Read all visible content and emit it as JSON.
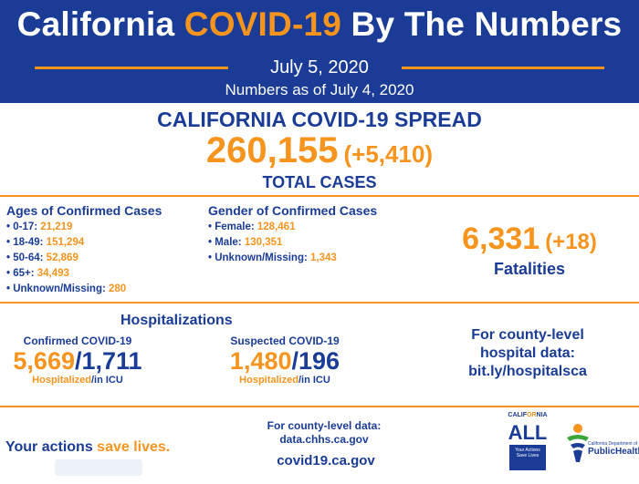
{
  "header": {
    "title_part1": "California ",
    "title_accent": "COVID-19",
    "title_part2": " By The Numbers",
    "date": "July 5, 2020",
    "as_of": "Numbers as of July 4, 2020"
  },
  "spread": {
    "title": "CALIFORNIA COVID-19 SPREAD",
    "total": "260,155",
    "delta": "(+5,410)",
    "label": "TOTAL CASES"
  },
  "ages": {
    "title": "Ages of Confirmed Cases",
    "items": [
      {
        "label": "• 0-17: ",
        "value": "21,219"
      },
      {
        "label": "• 18-49: ",
        "value": "151,294"
      },
      {
        "label": "• 50-64: ",
        "value": "52,869"
      },
      {
        "label": "• 65+: ",
        "value": "34,493"
      },
      {
        "label": "• Unknown/Missing: ",
        "value": "280"
      }
    ]
  },
  "gender": {
    "title": "Gender of Confirmed Cases",
    "items": [
      {
        "label": "• Female: ",
        "value": "128,461"
      },
      {
        "label": "• Male: ",
        "value": "130,351"
      },
      {
        "label": "• Unknown/Missing: ",
        "value": "1,343"
      }
    ]
  },
  "fatalities": {
    "count": "6,331",
    "delta": "(+18)",
    "label": "Fatalities"
  },
  "hospitalizations": {
    "title": "Hospitalizations",
    "confirmed": {
      "label": "Confirmed COVID-19",
      "hospitalized": "5,669",
      "slash": "/",
      "icu": "1,711",
      "note_hosp": "Hospitalized",
      "note_icu": "/in ICU"
    },
    "suspected": {
      "label": "Suspected COVID-19",
      "hospitalized": "1,480",
      "slash": "/",
      "icu": "196",
      "note_hosp": "Hospitalized",
      "note_icu": "/in ICU"
    }
  },
  "county_hospital": {
    "line1": "For county-level",
    "line2": "hospital data:",
    "link": "bit.ly/hospitalsca"
  },
  "footer": {
    "actions_part1": "Your actions ",
    "actions_part2": "save lives.",
    "county_data_line1": "For county-level data:",
    "county_data_link": "data.chhs.ca.gov",
    "site": "covid19.ca.gov",
    "logo_ca_1": "CALIF",
    "logo_ca_2": "OR",
    "logo_ca_3": "NIA",
    "logo_all": "ALL",
    "logo_box_1": "Your Actions",
    "logo_box_2": "Save Lives",
    "cdph_small": "California Department of",
    "cdph_name": "PublicHealth"
  },
  "colors": {
    "navy": "#1a3c96",
    "orange": "#f7941d"
  }
}
